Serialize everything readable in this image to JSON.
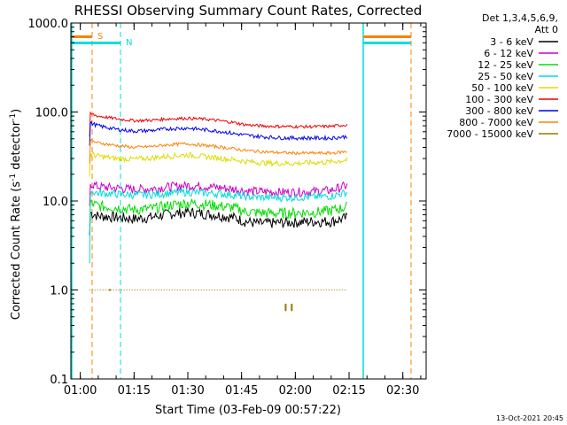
{
  "chart_data": {
    "type": "line",
    "title": "RHESSI Observing Summary Count Rates, Corrected",
    "xlabel": "Start Time (03-Feb-09 00:57:22)",
    "ylabel": "Corrected Count Rate (s",
    "ylabel_sup": "-1",
    "ylabel_mid": " detector",
    "ylabel_sup2": "-1",
    "ylabel_end": ")",
    "footer": "13-Oct-2021 20:45",
    "yscale": "log",
    "ylim": [
      0.1,
      1000
    ],
    "xlim_minutes": [
      57.37,
      156.5
    ],
    "x_ticks": [
      {
        "label": "01:00",
        "min": 60
      },
      {
        "label": "01:15",
        "min": 75
      },
      {
        "label": "01:30",
        "min": 90
      },
      {
        "label": "01:45",
        "min": 105
      },
      {
        "label": "02:00",
        "min": 120
      },
      {
        "label": "02:15",
        "min": 135
      },
      {
        "label": "02:30",
        "min": 150
      }
    ],
    "y_ticks": [
      {
        "label": "0.1",
        "v": 0.1
      },
      {
        "label": "1.0",
        "v": 1
      },
      {
        "label": "10.0",
        "v": 10
      },
      {
        "label": "100.0",
        "v": 100
      },
      {
        "label": "1000.0",
        "v": 1000
      }
    ],
    "legend_header": [
      "Det 1,3,4,5,6,9,",
      "Att 0"
    ],
    "legend_position": "right",
    "series": [
      {
        "name": "3 - 6 keV",
        "color": "#000000",
        "x": [
          62.5,
          65,
          70,
          75,
          80,
          85,
          90,
          95,
          100,
          103,
          106,
          110,
          115,
          120,
          125,
          130,
          134.5
        ],
        "y": [
          7.5,
          6.8,
          6.6,
          6.3,
          6.6,
          7.2,
          7.5,
          7.2,
          6.8,
          6.5,
          5.9,
          5.6,
          5.7,
          5.8,
          5.9,
          5.9,
          6.5
        ]
      },
      {
        "name": "6 - 12 keV",
        "color": "#cc00cc",
        "x": [
          62.5,
          65,
          70,
          75,
          80,
          85,
          90,
          95,
          100,
          103,
          106,
          110,
          115,
          120,
          125,
          130,
          134.5
        ],
        "y": [
          16,
          14.5,
          14,
          13.5,
          13.8,
          14.5,
          15,
          14.6,
          14,
          13.6,
          13,
          12.8,
          12.6,
          12.6,
          12.8,
          13.2,
          15
        ]
      },
      {
        "name": "12 - 25 keV",
        "color": "#00dd00",
        "x": [
          62.5,
          65,
          70,
          75,
          80,
          85,
          90,
          95,
          100,
          103,
          106,
          110,
          115,
          120,
          125,
          130,
          134.5
        ],
        "y": [
          9.5,
          8.8,
          8.5,
          8,
          8.2,
          9,
          9.5,
          9.2,
          8.7,
          8.4,
          7.6,
          7.4,
          7.3,
          7.4,
          7.5,
          7.8,
          8.6
        ]
      },
      {
        "name": "25 - 50 keV",
        "color": "#00dddd",
        "x": [
          62.5,
          65,
          70,
          75,
          80,
          85,
          90,
          95,
          100,
          103,
          106,
          110,
          115,
          120,
          125,
          130,
          134.5
        ],
        "y": [
          13,
          12.3,
          12,
          11.7,
          11.8,
          12.3,
          12.6,
          12.3,
          12,
          11.7,
          11.2,
          11,
          10.9,
          11,
          11.1,
          11.4,
          12.5
        ]
      },
      {
        "name": "50 - 100 keV",
        "color": "#dddd00",
        "x": [
          62.5,
          65,
          70,
          75,
          80,
          85,
          90,
          95,
          100,
          103,
          106,
          110,
          115,
          120,
          125,
          130,
          134.5
        ],
        "y": [
          34,
          32,
          30,
          29.5,
          30.5,
          32,
          33,
          31.5,
          30,
          29,
          28,
          27,
          26.5,
          26.5,
          27,
          27.5,
          29
        ]
      },
      {
        "name": "100 - 300 keV",
        "color": "#ee0000",
        "x": [
          62.5,
          65,
          70,
          75,
          80,
          85,
          90,
          95,
          100,
          103,
          106,
          110,
          115,
          120,
          125,
          130,
          134.5
        ],
        "y": [
          96,
          90,
          84,
          80,
          81,
          84,
          85,
          83,
          79,
          76,
          72,
          70,
          69,
          68.5,
          68.5,
          69,
          72
        ]
      },
      {
        "name": "300 - 800 keV",
        "color": "#0000ee",
        "x": [
          62.5,
          65,
          70,
          75,
          80,
          85,
          90,
          95,
          100,
          103,
          106,
          110,
          115,
          120,
          125,
          130,
          134.5
        ],
        "y": [
          76,
          70,
          64,
          61,
          62,
          65,
          66,
          63,
          60,
          57,
          55,
          53,
          51.5,
          51,
          51,
          51,
          53
        ]
      },
      {
        "name": "800 - 7000 keV",
        "color": "#ff8000",
        "x": [
          62.5,
          65,
          70,
          75,
          80,
          85,
          90,
          95,
          100,
          103,
          106,
          110,
          115,
          120,
          125,
          130,
          134.5
        ],
        "y": [
          48,
          45,
          42,
          40,
          41,
          43,
          44,
          42,
          40,
          38.5,
          37,
          36,
          35,
          34.5,
          34.5,
          34.5,
          36
        ]
      },
      {
        "name": "7000 - 15000 keV",
        "color": "#997700",
        "x": [
          62.5,
          80,
          95,
          110,
          120,
          134.5
        ],
        "y": [
          1.0,
          1.0,
          1.0,
          1.0,
          1.0,
          1.0
        ]
      }
    ],
    "attenuator_markers": [
      {
        "label": "S",
        "color": "#ff8000"
      },
      {
        "label": "N",
        "color": "#00dddd"
      }
    ]
  }
}
